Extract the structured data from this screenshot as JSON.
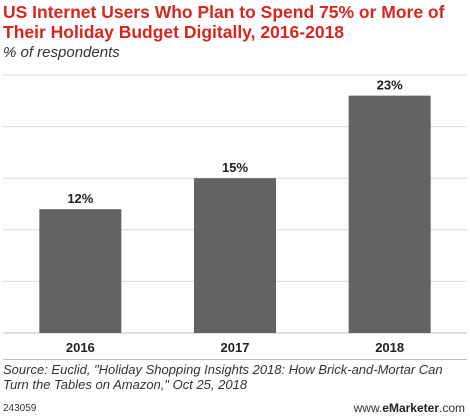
{
  "header": {
    "title": "US Internet Users Who Plan to Spend 75% or More of Their Holiday Budget Digitally, 2016-2018",
    "subtitle": "% of respondents"
  },
  "footer": {
    "source": "Source: Euclid, \"Holiday Shopping Insights 2018: How Brick-and-Mortar Can Turn the Tables on Amazon,\" Oct 25, 2018",
    "id": "243059",
    "brand_prefix": "www.",
    "brand_name": "eMarketer",
    "brand_suffix": ".com"
  },
  "colors": {
    "title": "#d7261e",
    "bar": "#636363",
    "grid": "#d9d9d9"
  },
  "chart_data": {
    "type": "bar",
    "title": "US Internet Users Who Plan to Spend 75% or More of Their Holiday Budget Digitally, 2016-2018",
    "subtitle": "% of respondents",
    "categories": [
      "2016",
      "2017",
      "2018"
    ],
    "values": [
      12,
      15,
      23
    ],
    "value_labels": [
      "12%",
      "15%",
      "23%"
    ],
    "ylim": [
      0,
      25
    ],
    "grid": true,
    "legend": "none"
  }
}
